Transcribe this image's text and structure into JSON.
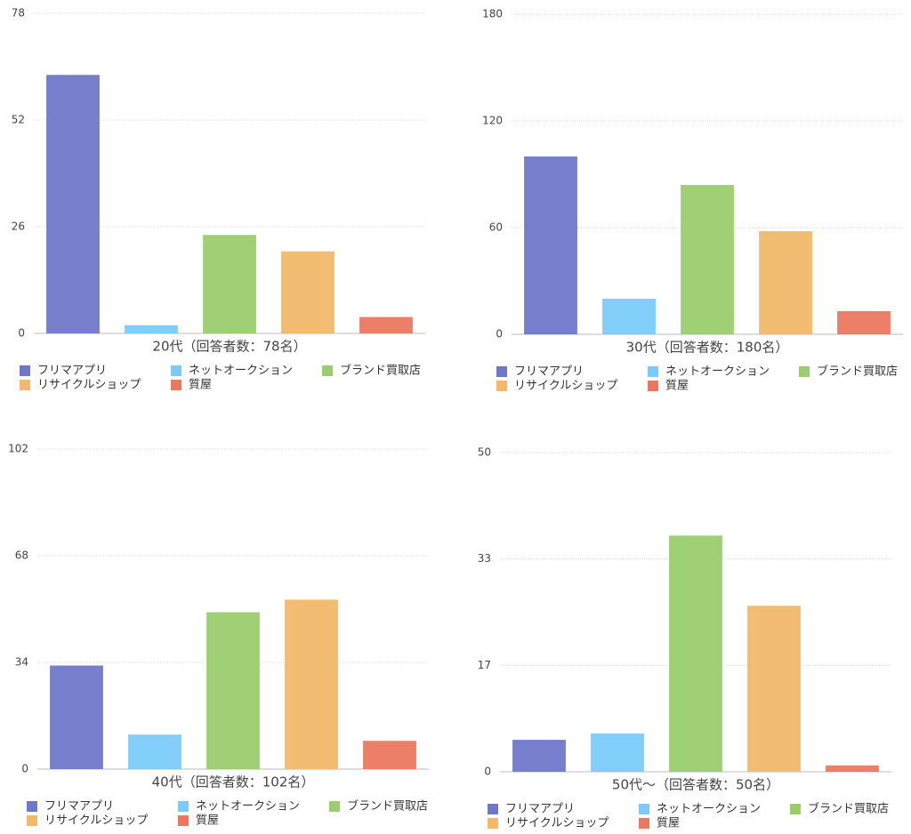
{
  "chart_data": [
    {
      "type": "bar",
      "xlabel": "20代（回答者数：78名）",
      "categories": [
        null
      ],
      "series": [
        {
          "name": "フリマアプリ",
          "color": "#7077c8",
          "values": [
            63
          ]
        },
        {
          "name": "ネットオークション",
          "color": "#7bcbfa",
          "values": [
            2
          ]
        },
        {
          "name": "ブランド買取店",
          "color": "#9bcd6e",
          "values": [
            24
          ]
        },
        {
          "name": "リサイクルショップ",
          "color": "#f2b86c",
          "values": [
            20
          ]
        },
        {
          "name": "質屋",
          "color": "#ec7760",
          "values": [
            4
          ]
        }
      ],
      "ylim": [
        0,
        78
      ],
      "yticks": [
        0,
        26,
        52,
        78
      ],
      "grid": true
    },
    {
      "type": "bar",
      "xlabel": "30代（回答者数：180名）",
      "categories": [
        null
      ],
      "series": [
        {
          "name": "フリマアプリ",
          "color": "#7077c8",
          "values": [
            100
          ]
        },
        {
          "name": "ネットオークション",
          "color": "#7bcbfa",
          "values": [
            20
          ]
        },
        {
          "name": "ブランド買取店",
          "color": "#9bcd6e",
          "values": [
            84
          ]
        },
        {
          "name": "リサイクルショップ",
          "color": "#f2b86c",
          "values": [
            58
          ]
        },
        {
          "name": "質屋",
          "color": "#ec7760",
          "values": [
            13
          ]
        }
      ],
      "ylim": [
        0,
        180
      ],
      "yticks": [
        0,
        60,
        120,
        180
      ],
      "grid": true
    },
    {
      "type": "bar",
      "xlabel": "40代（回答者数：102名）",
      "categories": [
        null
      ],
      "series": [
        {
          "name": "フリマアプリ",
          "color": "#7077c8",
          "values": [
            33
          ]
        },
        {
          "name": "ネットオークション",
          "color": "#7bcbfa",
          "values": [
            11
          ]
        },
        {
          "name": "ブランド買取店",
          "color": "#9bcd6e",
          "values": [
            50
          ]
        },
        {
          "name": "リサイクルショップ",
          "color": "#f2b86c",
          "values": [
            54
          ]
        },
        {
          "name": "質屋",
          "color": "#ec7760",
          "values": [
            9
          ]
        }
      ],
      "ylim": [
        0,
        102
      ],
      "yticks": [
        0,
        34,
        68,
        102
      ],
      "grid": true
    },
    {
      "type": "bar",
      "xlabel": "50代〜（回答者数：50名）",
      "categories": [
        null
      ],
      "series": [
        {
          "name": "フリマアプリ",
          "color": "#7077c8",
          "values": [
            5
          ]
        },
        {
          "name": "ネットオークション",
          "color": "#7bcbfa",
          "values": [
            6
          ]
        },
        {
          "name": "ブランド買取店",
          "color": "#9bcd6e",
          "values": [
            37
          ]
        },
        {
          "name": "リサイクルショップ",
          "color": "#f2b86c",
          "values": [
            26
          ]
        },
        {
          "name": "質屋",
          "color": "#ec7760",
          "values": [
            1
          ]
        }
      ],
      "ylim": [
        0,
        50
      ],
      "yticks": [
        0,
        {
          "value": 16.67,
          "label": "17"
        },
        {
          "value": 33.33,
          "label": "33"
        },
        50
      ],
      "grid": true
    }
  ]
}
